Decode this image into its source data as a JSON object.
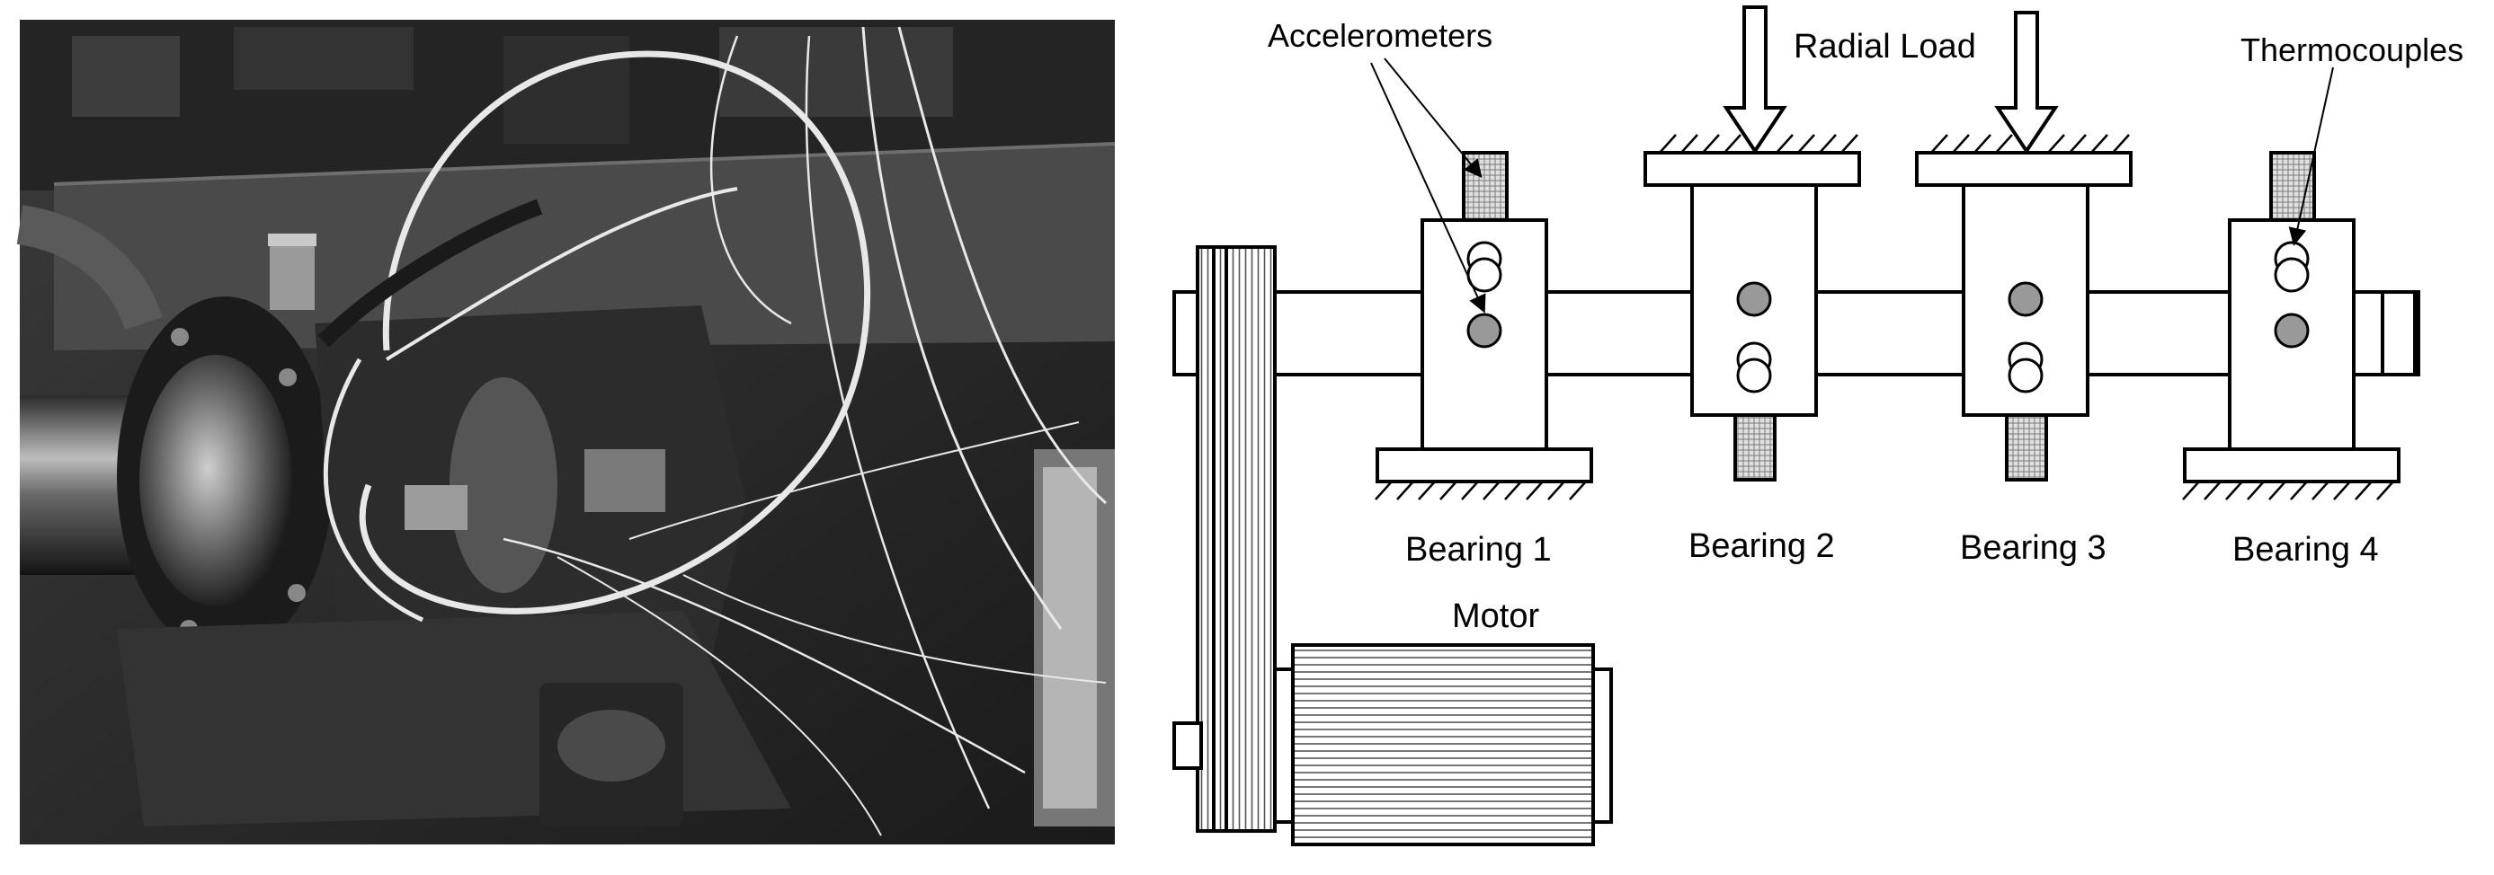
{
  "diagram": {
    "labels": {
      "accelerometers": "Accelerometers",
      "radial_load": "Radial Load",
      "thermocouples": "Thermocouples",
      "motor": "Motor"
    },
    "bearings": [
      {
        "label": "Bearing 1"
      },
      {
        "label": "Bearing 2"
      },
      {
        "label": "Bearing 3"
      },
      {
        "label": "Bearing 4"
      }
    ]
  }
}
